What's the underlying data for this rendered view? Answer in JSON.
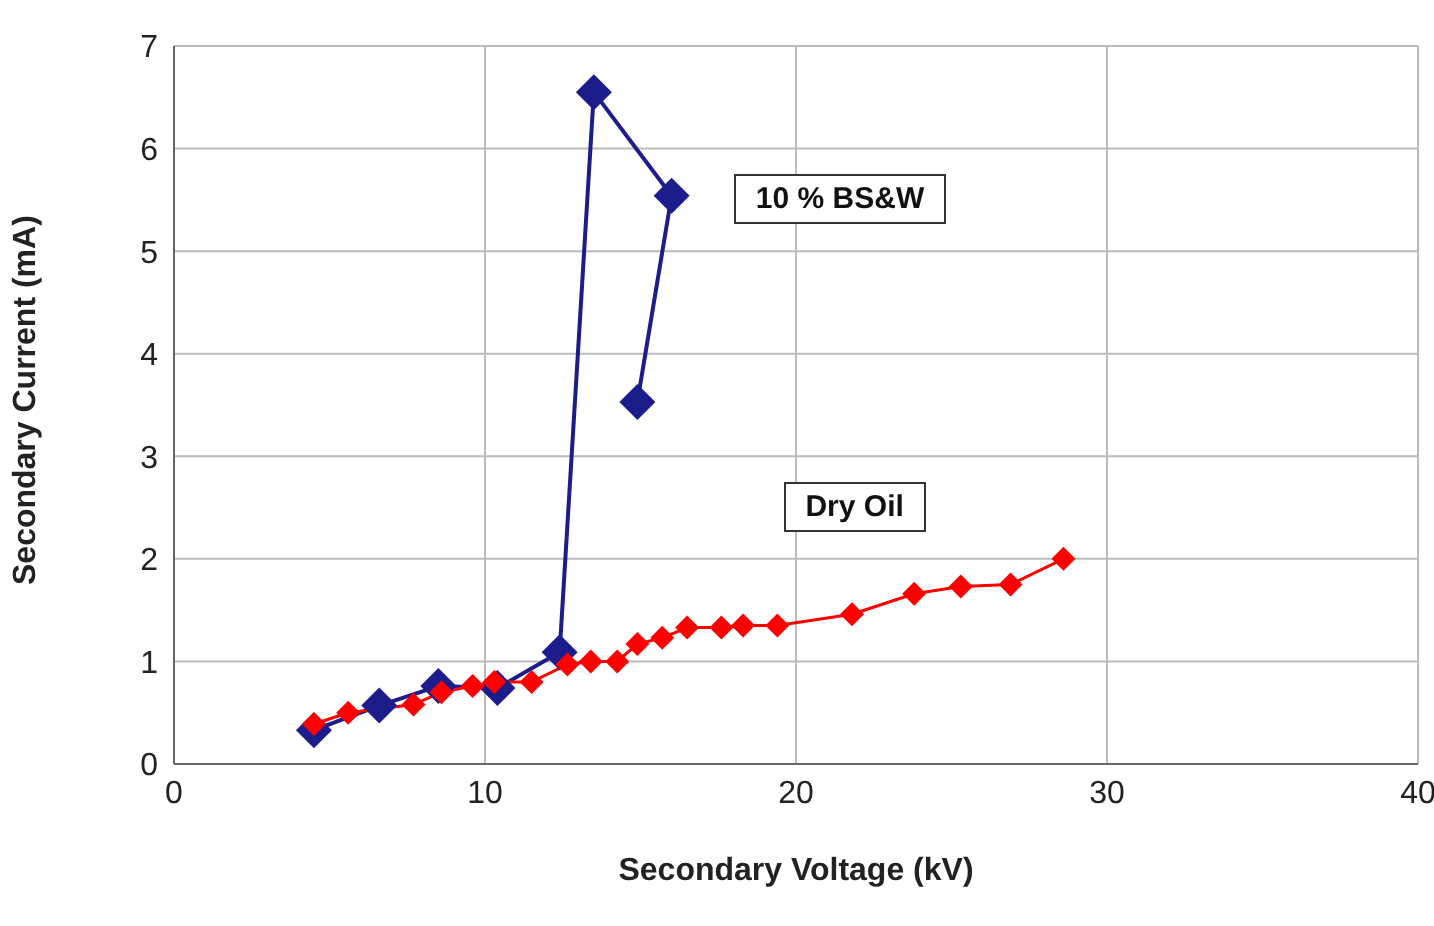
{
  "chart_data": {
    "type": "line",
    "xlabel": "Secondary Voltage  (kV)",
    "ylabel": "Secondary Current (mA)",
    "xlim": [
      0,
      40
    ],
    "xticks": [
      0,
      10,
      20,
      30,
      40
    ],
    "ylim": [
      0,
      7
    ],
    "yticks": [
      0,
      1,
      2,
      3,
      4,
      5,
      6,
      7
    ],
    "grid": true,
    "legend": false,
    "marker": "diamond",
    "line_style": "solid",
    "series": [
      {
        "name": "10 % BS&W",
        "color": "#1c1c8a",
        "x": [
          4.5,
          6.6,
          8.5,
          10.4,
          12.4,
          13.5,
          16.0,
          14.9
        ],
        "values": [
          0.33,
          0.57,
          0.76,
          0.74,
          1.09,
          6.55,
          5.54,
          3.53
        ]
      },
      {
        "name": "Dry Oil",
        "color": "#ff0000",
        "x": [
          4.5,
          5.6,
          7.7,
          8.6,
          9.6,
          10.3,
          11.5,
          12.65,
          13.4,
          14.25,
          14.9,
          15.7,
          16.5,
          17.6,
          18.3,
          19.4,
          21.8,
          23.8,
          25.3,
          26.9,
          28.6
        ],
        "values": [
          0.39,
          0.5,
          0.58,
          0.7,
          0.76,
          0.8,
          0.8,
          0.97,
          1.0,
          1.0,
          1.17,
          1.23,
          1.33,
          1.33,
          1.35,
          1.35,
          1.46,
          1.66,
          1.73,
          1.75,
          2.0
        ]
      }
    ]
  }
}
